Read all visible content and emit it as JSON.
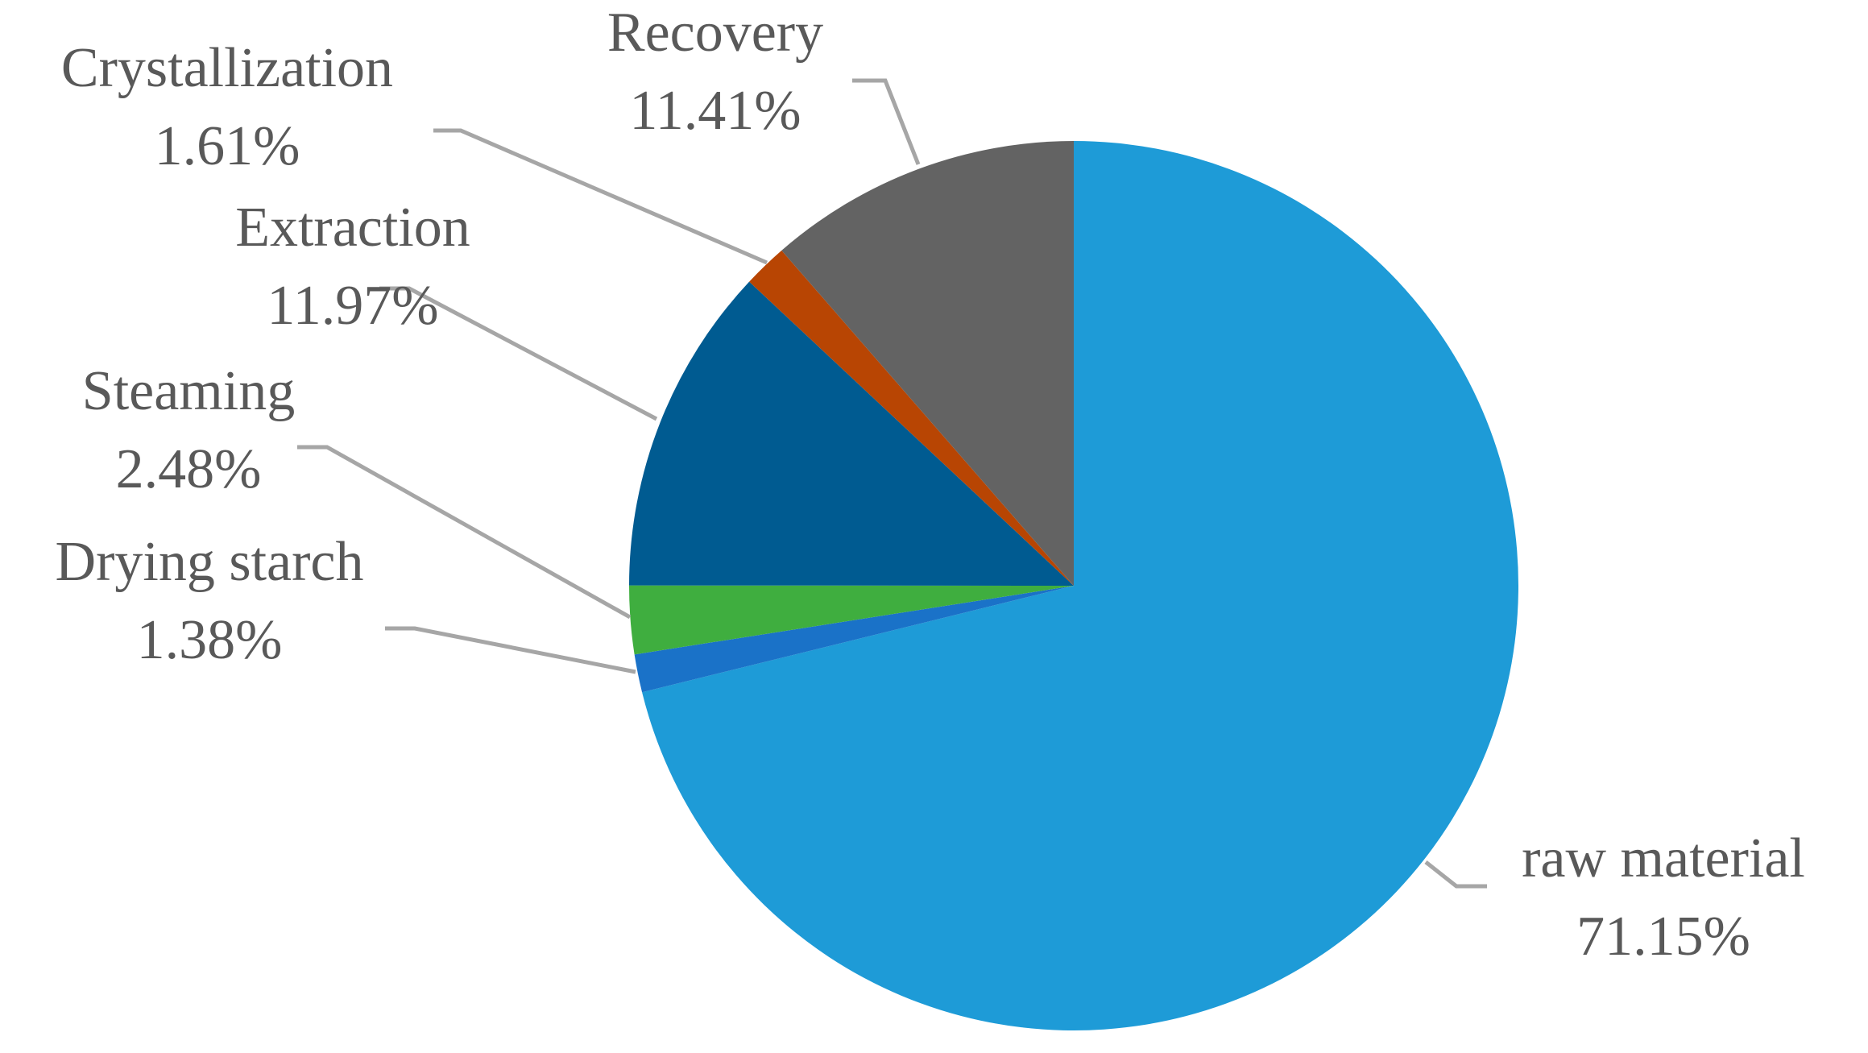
{
  "chart_data": {
    "type": "pie",
    "start_angle_deg": 0,
    "direction": "clockwise",
    "slices": [
      {
        "label": "raw material",
        "value": 71.15,
        "label_text": "71.15%",
        "color": "#1e9bd7"
      },
      {
        "label": "Drying starch",
        "value": 1.38,
        "label_text": "1.38%",
        "color": "#1a72c8"
      },
      {
        "label": "Steaming",
        "value": 2.48,
        "label_text": "2.48%",
        "color": "#3fae3f"
      },
      {
        "label": "Extraction",
        "value": 11.97,
        "label_text": "11.97%",
        "color": "#005b91"
      },
      {
        "label": "Crystallization",
        "value": 1.61,
        "label_text": "1.61%",
        "color": "#b84503"
      },
      {
        "label": "Recovery",
        "value": 11.41,
        "label_text": "11.41%",
        "color": "#636363"
      }
    ]
  }
}
